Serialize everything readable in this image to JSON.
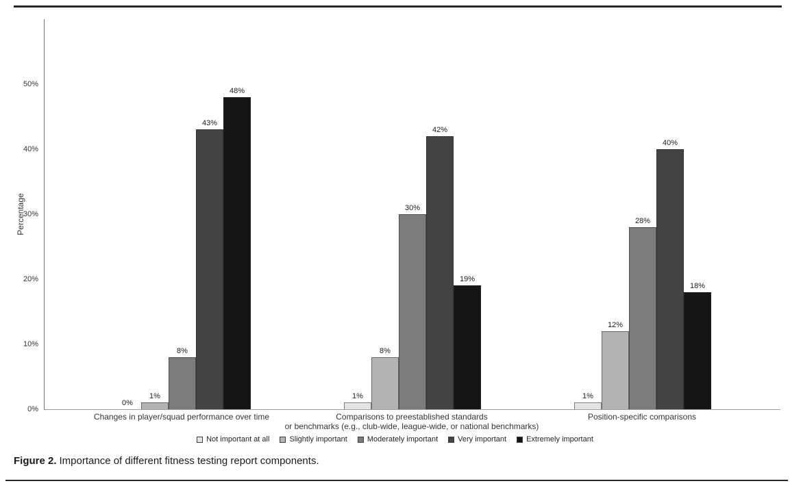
{
  "figure": {
    "caption_label": "Figure 2.",
    "caption_text": "Importance of different fitness testing report components."
  },
  "chart_data": {
    "type": "bar",
    "title": "",
    "xlabel": "",
    "ylabel": "Percentage",
    "ylim": [
      0,
      60
    ],
    "yticks": [
      0,
      10,
      20,
      30,
      40,
      50
    ],
    "ytick_suffix": "%",
    "grid": false,
    "legend_position": "bottom-center",
    "value_label_suffix": "%",
    "categories": [
      [
        "Changes in player/squad performance over time"
      ],
      [
        "Comparisons to preestablished standards",
        "or benchmarks (e.g., club-wide, league-wide, or national benchmarks)"
      ],
      [
        "Position-specific comparisons"
      ]
    ],
    "series": [
      {
        "name": "Not important at all",
        "color": "#e4e4e4",
        "values": [
          0,
          1,
          1
        ]
      },
      {
        "name": "Slightly important",
        "color": "#b3b3b3",
        "values": [
          1,
          8,
          12
        ]
      },
      {
        "name": "Moderately important",
        "color": "#7c7c7c",
        "values": [
          8,
          30,
          28
        ]
      },
      {
        "name": "Very important",
        "color": "#434343",
        "values": [
          43,
          42,
          40
        ]
      },
      {
        "name": "Extremely important",
        "color": "#151515",
        "values": [
          48,
          19,
          18
        ]
      }
    ]
  }
}
